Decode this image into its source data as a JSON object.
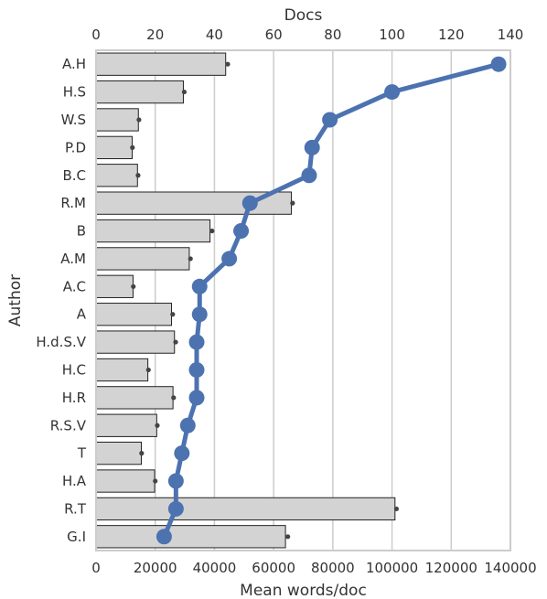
{
  "chart_data": {
    "type": "bar",
    "orientation": "horizontal",
    "xlabel_bottom": "Mean words/doc",
    "xlabel_top": "Docs",
    "ylabel": "Author",
    "categories": [
      "A.H",
      "H.S",
      "W.S",
      "P.D",
      "B.C",
      "R.M",
      "B",
      "A.M",
      "A.C",
      "A",
      "H.d.S.V",
      "H.C",
      "H.R",
      "R.S.V",
      "T",
      "H.A",
      "R.T",
      "G.I"
    ],
    "bottom_axis": {
      "range": [
        0,
        140000
      ],
      "ticks": [
        0,
        20000,
        40000,
        60000,
        80000,
        100000,
        120000,
        140000
      ]
    },
    "top_axis": {
      "range": [
        0,
        140
      ],
      "ticks": [
        0,
        20,
        40,
        60,
        80,
        100,
        120,
        140
      ]
    },
    "grid": "vertical",
    "series": [
      {
        "kind": "bar",
        "axis": "bottom",
        "values": [
          43800,
          29500,
          14300,
          12200,
          14000,
          66000,
          38500,
          31500,
          12500,
          25500,
          26500,
          17500,
          26000,
          20500,
          15300,
          19800,
          101000,
          64000
        ],
        "error_points": [
          44500,
          29800,
          14500,
          12300,
          14200,
          66400,
          39200,
          31900,
          12600,
          25900,
          26900,
          17700,
          26200,
          20700,
          15400,
          20000,
          101500,
          64800
        ],
        "color": "#d3d3d3"
      },
      {
        "kind": "line",
        "axis": "top",
        "values": [
          136,
          100,
          79,
          73,
          72,
          52,
          49,
          45,
          35,
          35,
          34,
          34,
          34,
          31,
          29,
          27,
          27,
          23
        ],
        "color": "#4c72b0"
      }
    ]
  }
}
